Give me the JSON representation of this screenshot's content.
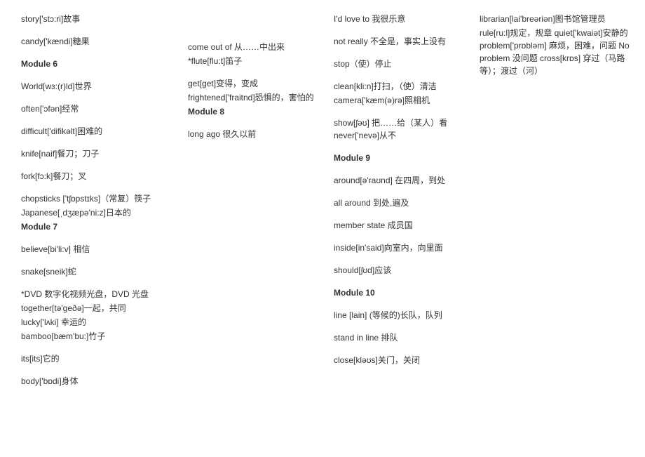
{
  "col1": [
    {
      "text": "story['stɔ:ri]故事",
      "cls": "entry"
    },
    {
      "text": "candy['kændi]糖果",
      "cls": "entry"
    },
    {
      "text": "Module 6",
      "cls": "heading"
    },
    {
      "text": "World[wɜ:(r)ld]世界",
      "cls": "entry"
    },
    {
      "text": "often['ɔfən]经常",
      "cls": "entry"
    },
    {
      "text": "difficult['difikəlt]困难的",
      "cls": "entry"
    },
    {
      "text": "knife[naif]餐刀；刀子",
      "cls": "entry"
    },
    {
      "text": "fork[fɔ:k]餐刀；叉",
      "cls": "entry"
    },
    {
      "text": "chopsticks ['tʃɒpstɪks]（常复）筷子",
      "cls": "entry tight"
    },
    {
      "text": "Japanese[ˌdʒæpə'ni:z]日本的",
      "cls": "entry tight"
    },
    {
      "text": "Module 7",
      "cls": "heading"
    },
    {
      "text": "believe[bi'li:v] 相信",
      "cls": "entry"
    },
    {
      "text": "snake[sneik]蛇",
      "cls": "entry"
    },
    {
      "text": "*DVD 数字化视频光盘，DVD 光盘",
      "cls": "entry tight"
    },
    {
      "text": "together[tə'geðə]一起，共同",
      "cls": "entry tight"
    },
    {
      "text": "lucky['lʌki] 幸运的",
      "cls": "entry tight"
    },
    {
      "text": "bamboo[bæm'bu:]竹子",
      "cls": "entry"
    },
    {
      "text": "its[its]它的",
      "cls": "entry"
    },
    {
      "text": "body['bɒdi]身体",
      "cls": "entry"
    }
  ],
  "col2": [
    {
      "text": "come out of 从……中出来",
      "cls": "entry tight"
    },
    {
      "text": "*flute[flu:t]笛子",
      "cls": "entry"
    },
    {
      "text": "get[get]变得，变成",
      "cls": "entry tight"
    },
    {
      "text": "frightened['fraitnd]恐惧的，害怕的",
      "cls": "entry tight"
    },
    {
      "text": "Module 8",
      "cls": "heading"
    },
    {
      "text": "long ago 很久以前",
      "cls": "entry"
    }
  ],
  "col3": [
    {
      "text": "I'd love to 我很乐意",
      "cls": "entry"
    },
    {
      "text": "not really 不全是，事实上没有",
      "cls": "entry"
    },
    {
      "text": "stop（使）停止",
      "cls": "entry"
    },
    {
      "text": "clean[kli:n]打扫，（使）清洁",
      "cls": "entry tight"
    },
    {
      "text": "camera['kæm(ə)rə]照相机",
      "cls": "entry"
    },
    {
      "text": "show[ʃəʊ] 把……给（某人）看 never['nevə]从不",
      "cls": "entry"
    },
    {
      "text": "Module 9",
      "cls": "heading"
    },
    {
      "text": "around[ə'raʊnd] 在四周，到处",
      "cls": "entry"
    },
    {
      "text": "all around 到处,遍及",
      "cls": "entry"
    },
    {
      "text": "member state 成员国",
      "cls": "entry"
    },
    {
      "text": "inside[in'said]向室内，向里面",
      "cls": "entry"
    },
    {
      "text": "should[ʃʊd]应该",
      "cls": "entry"
    },
    {
      "text": "Module 10",
      "cls": "heading"
    },
    {
      "text": "line [lain] (等候的)长队，队列",
      "cls": "entry"
    },
    {
      "text": "stand in line 排队",
      "cls": "entry"
    },
    {
      "text": "close[kləʊs]关门，关闭",
      "cls": "entry"
    }
  ],
  "col4": [
    {
      "text": "librarian[lai'breəriən]图书馆管理员",
      "cls": "entry tight"
    },
    {
      "text": "rule[ru:l]规定，规章 quiet['kwaiət]安静的 problem['prɒbləm] 麻烦，困难，问题 No problem 没问题 cross[krɒs] 穿过（马路等）；渡过（河）",
      "cls": "entry"
    }
  ]
}
